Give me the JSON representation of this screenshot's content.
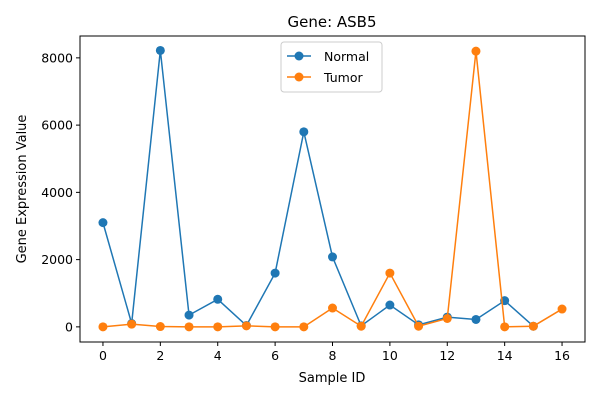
{
  "chart_data": {
    "type": "line",
    "title": "Gene: ASB5",
    "xlabel": "Sample ID",
    "ylabel": "Gene Expression Value",
    "x": [
      0,
      1,
      2,
      3,
      4,
      5,
      6,
      7,
      8,
      9,
      10,
      11,
      12,
      13,
      14,
      15,
      16
    ],
    "xlim": [
      -0.8,
      16.8
    ],
    "ylim": [
      -450,
      8650
    ],
    "xticks": [
      0,
      2,
      4,
      6,
      8,
      10,
      12,
      14,
      16
    ],
    "yticks": [
      0,
      2000,
      4000,
      6000,
      8000
    ],
    "grid": false,
    "legend_position": "top-center",
    "series": [
      {
        "name": "Normal",
        "color": "#1f77b4",
        "x": [
          0,
          1,
          2,
          3,
          4,
          5,
          6,
          7,
          8,
          9,
          10,
          11,
          12,
          13,
          14,
          15
        ],
        "values": [
          3100,
          100,
          8220,
          350,
          820,
          40,
          1600,
          5800,
          2080,
          30,
          650,
          60,
          290,
          220,
          780,
          20
        ]
      },
      {
        "name": "Tumor",
        "color": "#ff7f0e",
        "x": [
          0,
          1,
          2,
          3,
          4,
          5,
          6,
          7,
          8,
          9,
          10,
          11,
          12,
          13,
          14,
          15,
          16
        ],
        "values": [
          0,
          80,
          10,
          0,
          0,
          30,
          0,
          0,
          560,
          20,
          1600,
          20,
          250,
          8200,
          0,
          20,
          530
        ]
      }
    ]
  }
}
